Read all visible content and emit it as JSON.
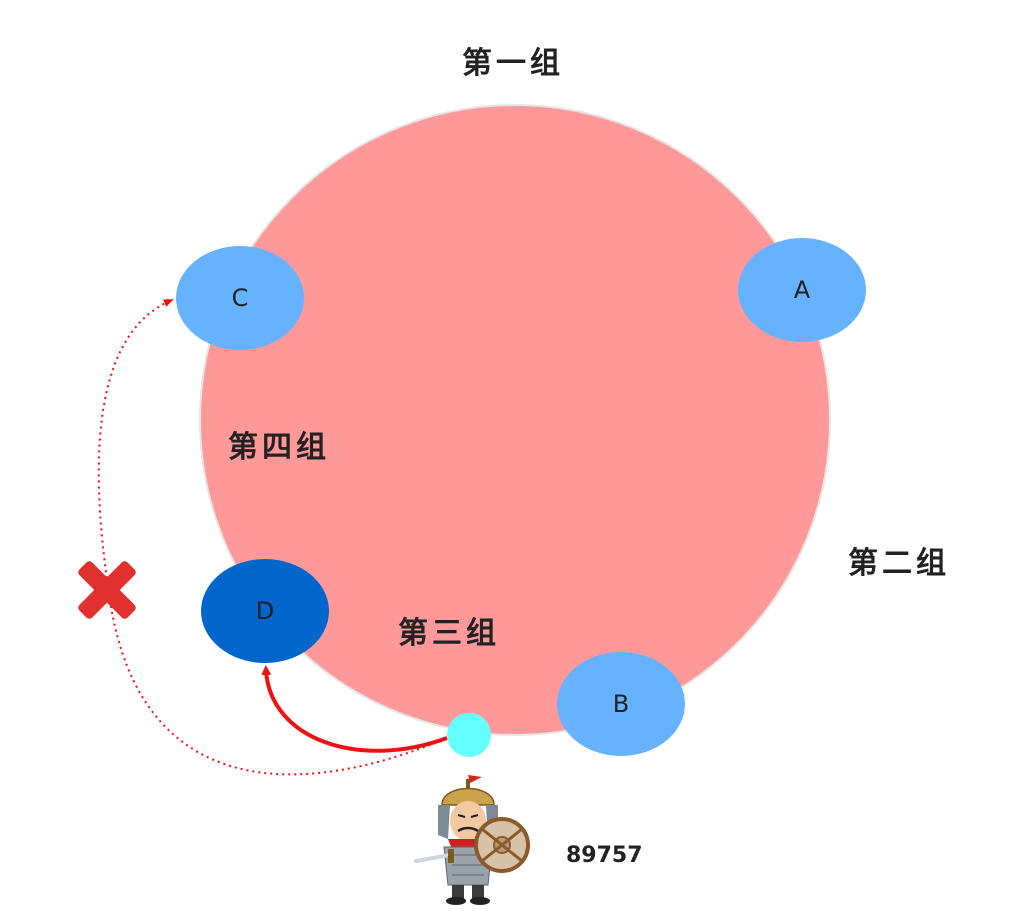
{
  "groups": {
    "g1": "第一组",
    "g2": "第二组",
    "g3": "第三组",
    "g4": "第四组"
  },
  "nodes": [
    {
      "id": "A",
      "label": "A",
      "color": "#66b2ff"
    },
    {
      "id": "B",
      "label": "B",
      "color": "#66b2ff"
    },
    {
      "id": "C",
      "label": "C",
      "color": "#66b2ff"
    },
    {
      "id": "D",
      "label": "D",
      "color": "#0066cc"
    }
  ],
  "key": {
    "label": "89757",
    "color": "#66ffff"
  },
  "colors": {
    "ring": "#ff9999",
    "ring_stroke": "#e6e6e6",
    "arrow": "#ee1111",
    "cross": "#e03030"
  },
  "icons": [
    "warrior-icon",
    "cross-mark-icon"
  ]
}
